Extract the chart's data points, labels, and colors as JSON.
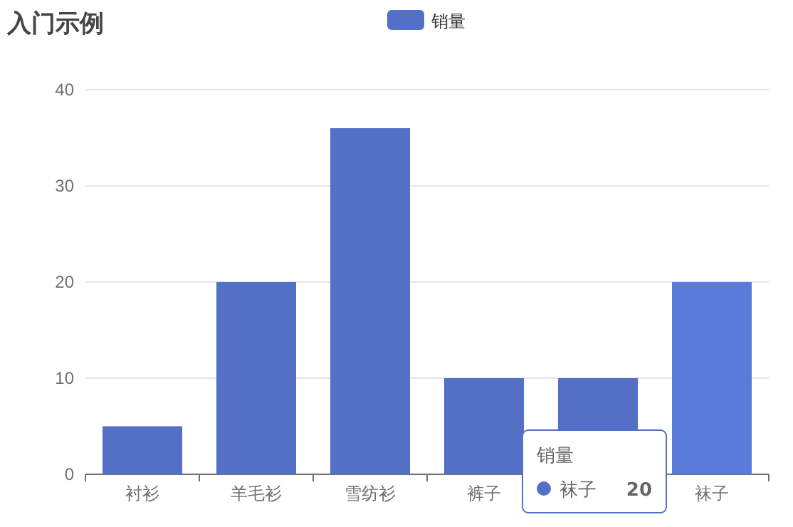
{
  "chart_data": {
    "type": "bar",
    "title": "入门示例",
    "categories": [
      "衬衫",
      "羊毛衫",
      "雪纺衫",
      "裤子",
      null,
      "袜子"
    ],
    "series": [
      {
        "name": "销量",
        "color": "#5470c6",
        "colors": [
          "#5470c6",
          "#5470c6",
          "#5470c6",
          "#5470c6",
          "#5470c6",
          "#5b7bda"
        ],
        "values": [
          5,
          20,
          36,
          10,
          10,
          20
        ]
      }
    ],
    "ylim": [
      0,
      40
    ],
    "yticks": [
      0,
      10,
      20,
      30,
      40
    ],
    "grid": "y",
    "legend": "top",
    "annotations": [
      "销量",
      "袜子",
      "20"
    ]
  }
}
